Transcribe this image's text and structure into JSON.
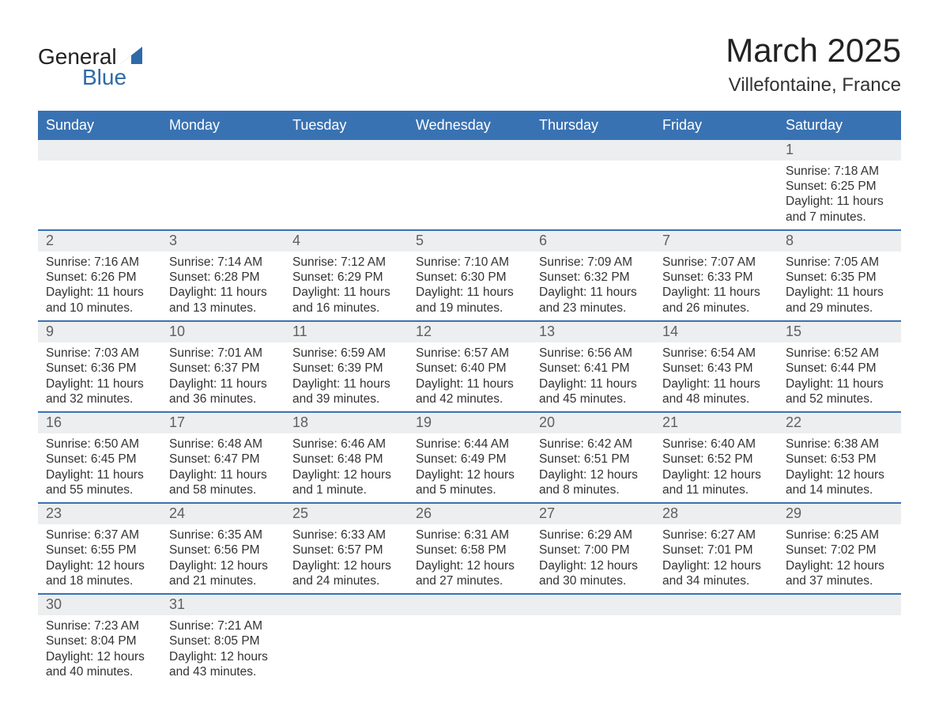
{
  "branding": {
    "logo_main": "General",
    "logo_sub": "Blue",
    "logo_color_main": "#222222",
    "logo_color_sub": "#2f6aa8",
    "triangle_color": "#2f6aa8"
  },
  "header": {
    "title": "March 2025",
    "subtitle": "Villefontaine, France",
    "title_fontsize": 42,
    "subtitle_fontsize": 24
  },
  "colors": {
    "header_bar_bg": "#3972b2",
    "header_bar_text": "#ffffff",
    "daynum_bg": "#eceeef",
    "daynum_text": "#5f5f5f",
    "body_text": "#333333",
    "week_divider": "#3972b2",
    "page_bg": "#ffffff"
  },
  "typography": {
    "font_family": "Arial",
    "dayheader_fontsize": 18,
    "daynum_fontsize": 18,
    "detail_fontsize": 15.5
  },
  "calendar": {
    "type": "table",
    "month": "March",
    "year": 2025,
    "start_day_index": 6,
    "day_names": [
      "Sunday",
      "Monday",
      "Tuesday",
      "Wednesday",
      "Thursday",
      "Friday",
      "Saturday"
    ],
    "days": [
      {
        "n": 1,
        "sunrise": "7:18 AM",
        "sunset": "6:25 PM",
        "daylight": "11 hours and 7 minutes."
      },
      {
        "n": 2,
        "sunrise": "7:16 AM",
        "sunset": "6:26 PM",
        "daylight": "11 hours and 10 minutes."
      },
      {
        "n": 3,
        "sunrise": "7:14 AM",
        "sunset": "6:28 PM",
        "daylight": "11 hours and 13 minutes."
      },
      {
        "n": 4,
        "sunrise": "7:12 AM",
        "sunset": "6:29 PM",
        "daylight": "11 hours and 16 minutes."
      },
      {
        "n": 5,
        "sunrise": "7:10 AM",
        "sunset": "6:30 PM",
        "daylight": "11 hours and 19 minutes."
      },
      {
        "n": 6,
        "sunrise": "7:09 AM",
        "sunset": "6:32 PM",
        "daylight": "11 hours and 23 minutes."
      },
      {
        "n": 7,
        "sunrise": "7:07 AM",
        "sunset": "6:33 PM",
        "daylight": "11 hours and 26 minutes."
      },
      {
        "n": 8,
        "sunrise": "7:05 AM",
        "sunset": "6:35 PM",
        "daylight": "11 hours and 29 minutes."
      },
      {
        "n": 9,
        "sunrise": "7:03 AM",
        "sunset": "6:36 PM",
        "daylight": "11 hours and 32 minutes."
      },
      {
        "n": 10,
        "sunrise": "7:01 AM",
        "sunset": "6:37 PM",
        "daylight": "11 hours and 36 minutes."
      },
      {
        "n": 11,
        "sunrise": "6:59 AM",
        "sunset": "6:39 PM",
        "daylight": "11 hours and 39 minutes."
      },
      {
        "n": 12,
        "sunrise": "6:57 AM",
        "sunset": "6:40 PM",
        "daylight": "11 hours and 42 minutes."
      },
      {
        "n": 13,
        "sunrise": "6:56 AM",
        "sunset": "6:41 PM",
        "daylight": "11 hours and 45 minutes."
      },
      {
        "n": 14,
        "sunrise": "6:54 AM",
        "sunset": "6:43 PM",
        "daylight": "11 hours and 48 minutes."
      },
      {
        "n": 15,
        "sunrise": "6:52 AM",
        "sunset": "6:44 PM",
        "daylight": "11 hours and 52 minutes."
      },
      {
        "n": 16,
        "sunrise": "6:50 AM",
        "sunset": "6:45 PM",
        "daylight": "11 hours and 55 minutes."
      },
      {
        "n": 17,
        "sunrise": "6:48 AM",
        "sunset": "6:47 PM",
        "daylight": "11 hours and 58 minutes."
      },
      {
        "n": 18,
        "sunrise": "6:46 AM",
        "sunset": "6:48 PM",
        "daylight": "12 hours and 1 minute."
      },
      {
        "n": 19,
        "sunrise": "6:44 AM",
        "sunset": "6:49 PM",
        "daylight": "12 hours and 5 minutes."
      },
      {
        "n": 20,
        "sunrise": "6:42 AM",
        "sunset": "6:51 PM",
        "daylight": "12 hours and 8 minutes."
      },
      {
        "n": 21,
        "sunrise": "6:40 AM",
        "sunset": "6:52 PM",
        "daylight": "12 hours and 11 minutes."
      },
      {
        "n": 22,
        "sunrise": "6:38 AM",
        "sunset": "6:53 PM",
        "daylight": "12 hours and 14 minutes."
      },
      {
        "n": 23,
        "sunrise": "6:37 AM",
        "sunset": "6:55 PM",
        "daylight": "12 hours and 18 minutes."
      },
      {
        "n": 24,
        "sunrise": "6:35 AM",
        "sunset": "6:56 PM",
        "daylight": "12 hours and 21 minutes."
      },
      {
        "n": 25,
        "sunrise": "6:33 AM",
        "sunset": "6:57 PM",
        "daylight": "12 hours and 24 minutes."
      },
      {
        "n": 26,
        "sunrise": "6:31 AM",
        "sunset": "6:58 PM",
        "daylight": "12 hours and 27 minutes."
      },
      {
        "n": 27,
        "sunrise": "6:29 AM",
        "sunset": "7:00 PM",
        "daylight": "12 hours and 30 minutes."
      },
      {
        "n": 28,
        "sunrise": "6:27 AM",
        "sunset": "7:01 PM",
        "daylight": "12 hours and 34 minutes."
      },
      {
        "n": 29,
        "sunrise": "6:25 AM",
        "sunset": "7:02 PM",
        "daylight": "12 hours and 37 minutes."
      },
      {
        "n": 30,
        "sunrise": "7:23 AM",
        "sunset": "8:04 PM",
        "daylight": "12 hours and 40 minutes."
      },
      {
        "n": 31,
        "sunrise": "7:21 AM",
        "sunset": "8:05 PM",
        "daylight": "12 hours and 43 minutes."
      }
    ],
    "labels": {
      "sunrise_prefix": "Sunrise: ",
      "sunset_prefix": "Sunset: ",
      "daylight_prefix": "Daylight: "
    }
  }
}
